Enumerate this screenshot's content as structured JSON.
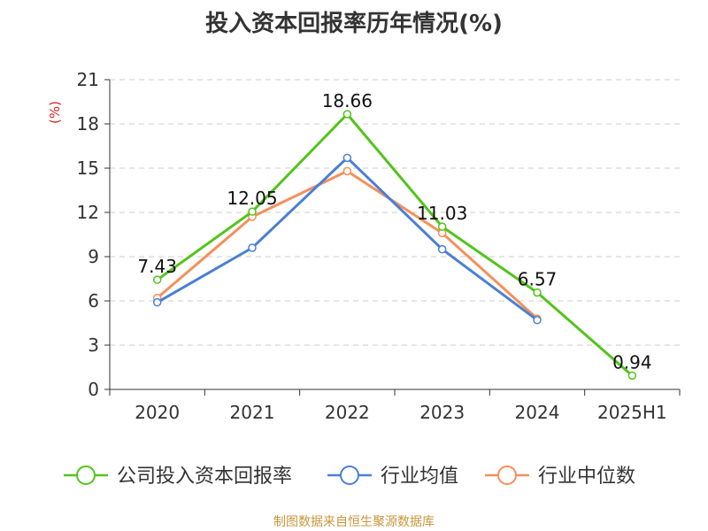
{
  "chart_data": {
    "type": "line",
    "title": "投入资本回报率历年情况(%)",
    "ylabel": "(%)",
    "xlabel": "",
    "categories": [
      "2020",
      "2021",
      "2022",
      "2023",
      "2024",
      "2025H1"
    ],
    "ylim": [
      0,
      21
    ],
    "yticks": [
      0,
      3,
      6,
      9,
      12,
      15,
      18,
      21
    ],
    "grid": true,
    "legend_position": "bottom",
    "series": [
      {
        "name": "公司投入资本回报率",
        "color": "#52c41a",
        "values": [
          7.43,
          12.05,
          18.66,
          11.03,
          6.57,
          0.94
        ],
        "data_labels": [
          "7.43",
          "12.05",
          "18.66",
          "11.03",
          "6.57",
          "0.94"
        ]
      },
      {
        "name": "行业均值",
        "color": "#4a7fd6",
        "values": [
          5.9,
          9.6,
          15.7,
          9.5,
          4.7,
          null
        ]
      },
      {
        "name": "行业中位数",
        "color": "#f4905a",
        "values": [
          6.2,
          11.7,
          14.8,
          10.6,
          4.8,
          null
        ]
      }
    ]
  },
  "source": "制图数据来自恒生聚源数据库"
}
